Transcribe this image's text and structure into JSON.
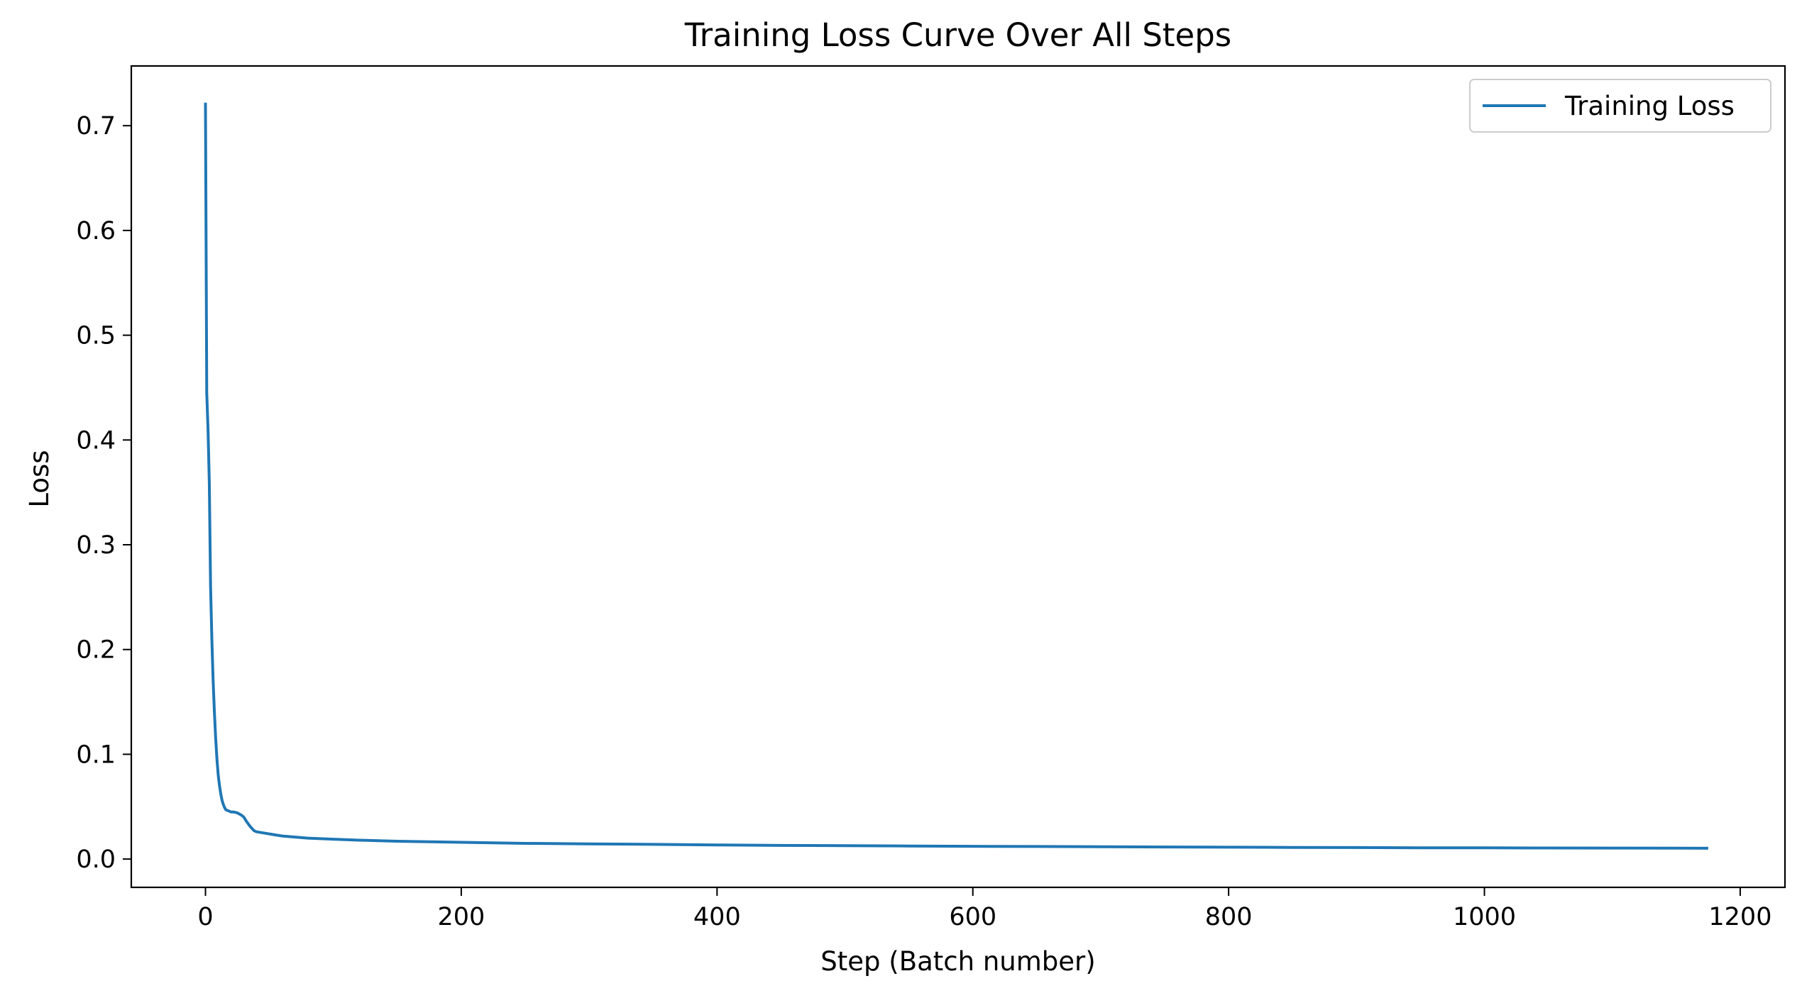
{
  "chart_data": {
    "type": "line",
    "title": "Training Loss Curve Over All Steps",
    "xlabel": "Step (Batch number)",
    "ylabel": "Loss",
    "xlim": [
      -58,
      1235
    ],
    "ylim": [
      -0.027,
      0.757
    ],
    "xticks": [
      0,
      200,
      400,
      600,
      800,
      1000,
      1200
    ],
    "yticks": [
      0.0,
      0.1,
      0.2,
      0.3,
      0.4,
      0.5,
      0.6,
      0.7
    ],
    "xtick_labels": [
      "0",
      "200",
      "400",
      "600",
      "800",
      "1000",
      "1200"
    ],
    "ytick_labels": [
      "0.0",
      "0.1",
      "0.2",
      "0.3",
      "0.4",
      "0.5",
      "0.6",
      "0.7"
    ],
    "grid": false,
    "legend_position": "upper right",
    "series": [
      {
        "name": "Training Loss",
        "color": "#1f77b4",
        "x": [
          0,
          1,
          2,
          3,
          4,
          5,
          6,
          7,
          8,
          9,
          10,
          11,
          12,
          13,
          14,
          15,
          16,
          18,
          20,
          22,
          25,
          28,
          30,
          32,
          35,
          38,
          40,
          45,
          50,
          60,
          70,
          80,
          100,
          120,
          150,
          200,
          250,
          300,
          350,
          400,
          450,
          500,
          550,
          600,
          650,
          700,
          750,
          800,
          850,
          900,
          950,
          1000,
          1050,
          1100,
          1150,
          1175
        ],
        "y": [
          0.722,
          0.445,
          0.41,
          0.36,
          0.26,
          0.21,
          0.17,
          0.14,
          0.115,
          0.095,
          0.08,
          0.07,
          0.062,
          0.056,
          0.052,
          0.049,
          0.047,
          0.046,
          0.045,
          0.045,
          0.044,
          0.042,
          0.04,
          0.036,
          0.031,
          0.027,
          0.026,
          0.025,
          0.024,
          0.022,
          0.021,
          0.02,
          0.019,
          0.018,
          0.017,
          0.016,
          0.015,
          0.0145,
          0.014,
          0.0135,
          0.013,
          0.0128,
          0.0125,
          0.0122,
          0.012,
          0.0118,
          0.0115,
          0.0113,
          0.0111,
          0.011,
          0.0108,
          0.0107,
          0.0106,
          0.0105,
          0.0104,
          0.0103
        ]
      }
    ]
  }
}
